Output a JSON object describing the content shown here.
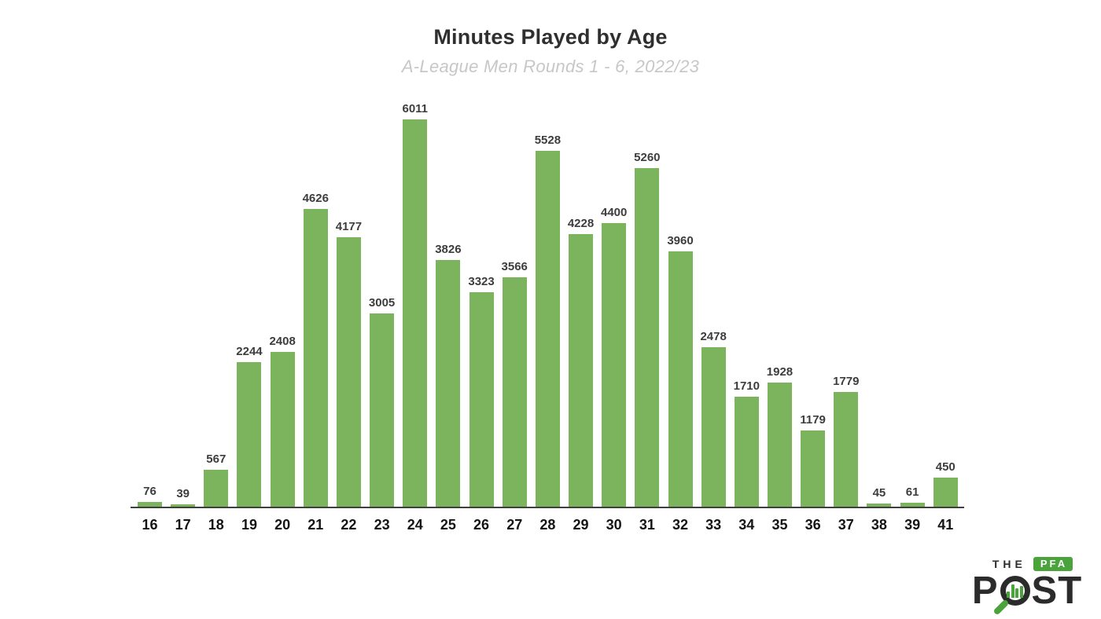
{
  "header": {
    "title": "Minutes Played by Age",
    "subtitle": "A-League Men Rounds 1 - 6, 2022/23"
  },
  "chart_data": {
    "type": "bar",
    "title": "Minutes Played by Age",
    "subtitle": "A-League Men Rounds 1 - 6, 2022/23",
    "categories": [
      "16",
      "17",
      "18",
      "19",
      "20",
      "21",
      "22",
      "23",
      "24",
      "25",
      "26",
      "27",
      "28",
      "29",
      "30",
      "31",
      "32",
      "33",
      "34",
      "35",
      "36",
      "37",
      "38",
      "39",
      "41"
    ],
    "values": [
      76,
      39,
      567,
      2244,
      2408,
      4626,
      4177,
      3005,
      6011,
      3826,
      3323,
      3566,
      5528,
      4228,
      4400,
      5260,
      3960,
      2478,
      1710,
      1928,
      1179,
      1779,
      45,
      61,
      450
    ],
    "xlabel": "",
    "ylabel": "",
    "ylim": [
      0,
      6011
    ],
    "grid": false,
    "legend": false,
    "value_labels": true,
    "bar_color": "#7cb45e",
    "axis_color": "#3f3f3f"
  },
  "logo": {
    "the": "THE",
    "pfa": "PFA",
    "post_p": "P",
    "post_st": "ST",
    "green": "#4ba33c",
    "dark": "#2b2b2b",
    "mini_bar_heights": [
      8,
      17,
      12,
      15
    ]
  }
}
